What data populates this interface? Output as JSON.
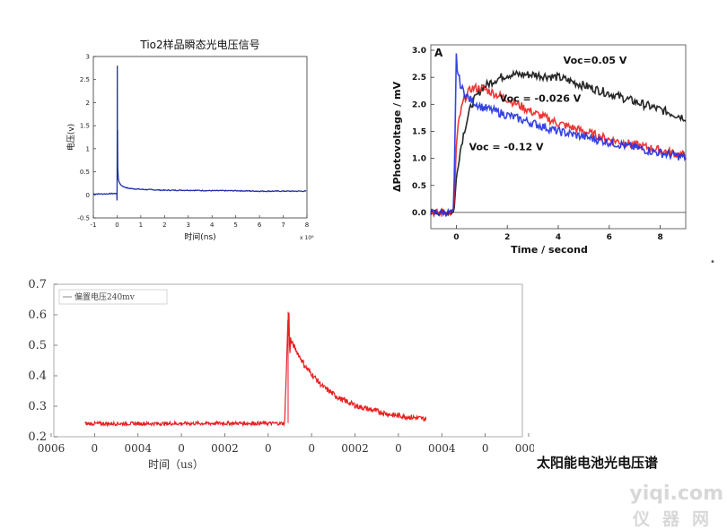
{
  "chart_data": [
    {
      "type": "line",
      "title": "Tio2样品瞬态光电压信号",
      "xlabel": "时间(ns)",
      "ylabel": "电压(v)",
      "x_multiplier_label": "x 10⁶",
      "xlim": [
        -1,
        8
      ],
      "ylim": [
        -0.5,
        3
      ],
      "xticks": [
        "-1",
        "0",
        "1",
        "2",
        "3",
        "4",
        "5",
        "6",
        "7",
        "8"
      ],
      "yticks": [
        "-0.5",
        "0",
        "0.5",
        "1",
        "1.5",
        "2",
        "2.5",
        "3"
      ],
      "series": [
        {
          "color": "#1f2fa8",
          "x": [
            -1,
            -0.5,
            -0.1,
            -0.02,
            0,
            0.01,
            0.02,
            0.03,
            0.05,
            0.1,
            0.2,
            0.3,
            0.5,
            1,
            1.5,
            2,
            3,
            4,
            5,
            6,
            7,
            8
          ],
          "y": [
            0.02,
            0.02,
            0.03,
            0.03,
            -0.12,
            2.8,
            1.2,
            0.6,
            0.35,
            0.25,
            0.2,
            0.17,
            0.14,
            0.12,
            0.11,
            0.1,
            0.1,
            0.09,
            0.09,
            0.08,
            0.08,
            0.08
          ]
        }
      ]
    },
    {
      "type": "line",
      "panel_label": "A",
      "xlabel": "Time / second",
      "ylabel": "ΔPhotovoltage / mV",
      "xlim": [
        -1,
        9
      ],
      "ylim": [
        -0.3,
        3.1
      ],
      "xticks": [
        "0",
        "2",
        "4",
        "6",
        "8"
      ],
      "yticks": [
        "0.0",
        "0.5",
        "1.0",
        "1.5",
        "2.0",
        "2.5",
        "3.0"
      ],
      "series": [
        {
          "name": "Voc=0.05 V",
          "color": "#111111",
          "x": [
            -1,
            -0.1,
            0,
            0.1,
            0.3,
            0.6,
            1,
            1.5,
            2,
            3,
            4,
            5,
            6,
            7,
            8,
            9
          ],
          "y": [
            0,
            0,
            0.6,
            1.0,
            1.5,
            2.0,
            2.3,
            2.45,
            2.55,
            2.55,
            2.5,
            2.35,
            2.2,
            2.05,
            1.9,
            1.75
          ]
        },
        {
          "name": "Voc = -0.026 V",
          "color": "#ee2020",
          "x": [
            -1,
            -0.1,
            0,
            0.1,
            0.3,
            0.6,
            1,
            2,
            3,
            4,
            5,
            6,
            7,
            8,
            9
          ],
          "y": [
            0,
            0,
            1.2,
            1.7,
            2.1,
            2.3,
            2.3,
            2.1,
            1.85,
            1.65,
            1.5,
            1.35,
            1.25,
            1.15,
            1.05
          ]
        },
        {
          "name": "Voc = -0.12 V",
          "color": "#2030e0",
          "x": [
            -1,
            -0.1,
            0,
            0.05,
            0.2,
            0.5,
            1,
            2,
            3,
            4,
            5,
            6,
            7,
            8,
            9
          ],
          "y": [
            0,
            0,
            2.9,
            2.6,
            2.3,
            2.1,
            1.95,
            1.8,
            1.65,
            1.5,
            1.4,
            1.3,
            1.2,
            1.1,
            1.02
          ]
        }
      ]
    },
    {
      "type": "line",
      "xlabel": "时间（us）",
      "ylim": [
        0.2,
        0.7
      ],
      "yticks": [
        "0.2",
        "0.3",
        "0.4",
        "0.5",
        "0.6",
        "0.7"
      ],
      "xticks": [
        "0006",
        "0",
        "0004",
        "0",
        "0002",
        "0",
        "0",
        "0002",
        "0",
        "0004",
        "0",
        "0006"
      ],
      "series": [
        {
          "name": "偏置电压240mv",
          "color": "#e82020",
          "x": [
            -0.0006,
            -0.0004,
            -0.0002,
            -1e-05,
            0,
            2e-06,
            1e-05,
            2e-05,
            5e-05,
            0.0001,
            0.00015,
            0.0002,
            0.0003,
            0.0004
          ],
          "y": [
            0.243,
            0.243,
            0.244,
            0.244,
            0.6,
            0.54,
            0.51,
            0.49,
            0.43,
            0.365,
            0.325,
            0.3,
            0.272,
            0.258
          ]
        }
      ]
    }
  ],
  "caption": "太阳能电池光电压谱",
  "watermark": {
    "top": "yiqi.com",
    "bottom": "仪器网"
  },
  "colors": {
    "blue_trace": "#1f2fa8",
    "red_trace": "#e82020",
    "black_trace": "#111111"
  }
}
